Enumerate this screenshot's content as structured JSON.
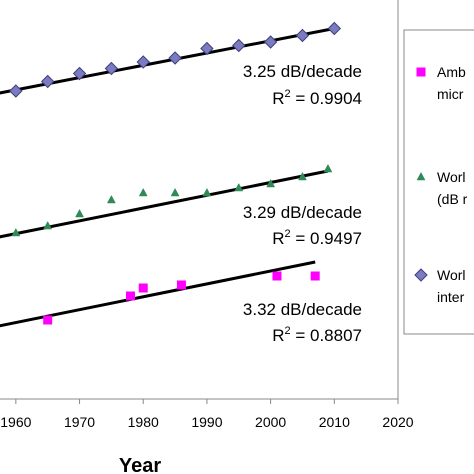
{
  "chart_data": {
    "type": "scatter",
    "title": "",
    "xlabel": "Year",
    "ylabel": "",
    "xlim": [
      1955,
      2020
    ],
    "x_ticks": [
      "1960",
      "1970",
      "1980",
      "1990",
      "2000",
      "2010",
      "2020"
    ],
    "grid": false,
    "legend_position": "right",
    "series": [
      {
        "name": "World",
        "legend_lines": [
          "Worl",
          "inter"
        ],
        "marker": "diamond",
        "color": "#7b7bbf",
        "edge_color": "#3f3f7f",
        "x": [
          1960,
          1965,
          1970,
          1975,
          1980,
          1985,
          1990,
          1995,
          2000,
          2005,
          2010
        ],
        "y": [
          91,
          81.5,
          73.5,
          68.5,
          62,
          58,
          48.5,
          45.5,
          42,
          35.5,
          28.5
        ],
        "trend": {
          "x": [
            1955,
            2010
          ],
          "y": [
            96,
            28.5
          ]
        },
        "annotation": {
          "rate": "3.25 dB/decade",
          "r2_label": "R",
          "r2_sup": "2",
          "r2_value": " = 0.9904"
        }
      },
      {
        "name": "World",
        "legend_lines": [
          "Worl",
          "(dB r"
        ],
        "marker": "triangle",
        "color": "#2e8b57",
        "edge_color": "#2e8b57",
        "x": [
          1960,
          1965,
          1970,
          1975,
          1980,
          1985,
          1990,
          1995,
          2000,
          2005,
          2009
        ],
        "y": [
          233,
          226,
          214,
          200,
          193,
          193,
          193,
          188,
          184,
          177,
          169
        ],
        "trend": {
          "x": [
            1955,
            2009
          ],
          "y": [
            240,
            171
          ]
        },
        "annotation": {
          "rate": "3.29 dB/decade",
          "r2_label": "R",
          "r2_sup": "2",
          "r2_value": " = 0.9497"
        }
      },
      {
        "name": "Amb",
        "legend_lines": [
          "Amb",
          "micr"
        ],
        "marker": "square",
        "color": "#ff00ff",
        "edge_color": "#ff00ff",
        "x": [
          1965,
          1978,
          1980,
          1986,
          2001,
          2007
        ],
        "y": [
          320,
          296,
          288,
          285,
          276,
          276
        ],
        "trend": {
          "x": [
            1955,
            2007
          ],
          "y": [
            329,
            262
          ]
        },
        "annotation": {
          "rate": "3.32 dB/decade",
          "r2_label": "R",
          "r2_sup": "2",
          "r2_value": " = 0.8807"
        }
      }
    ]
  }
}
